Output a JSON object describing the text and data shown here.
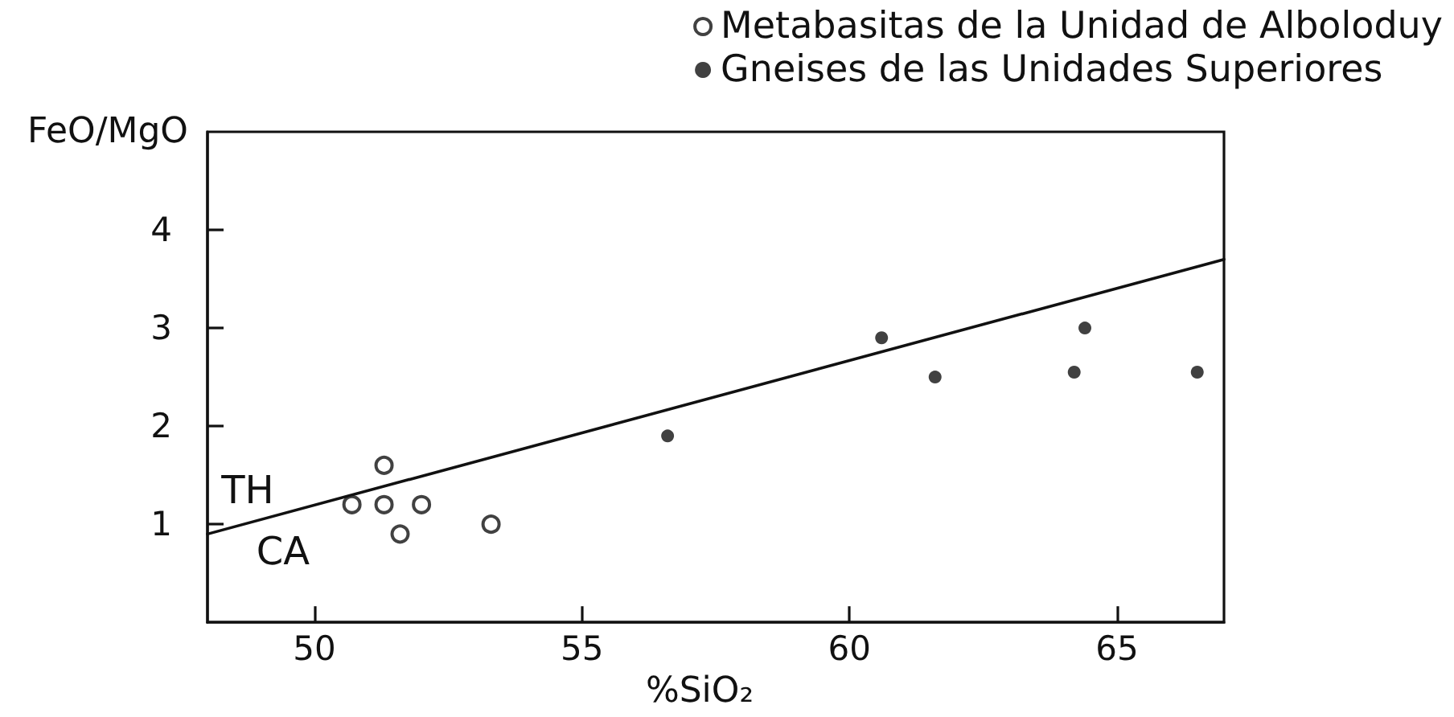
{
  "chart_data": {
    "type": "scatter",
    "xlabel": "%SiO₂",
    "ylabel": "FeO/MgO",
    "xlim": [
      48,
      67
    ],
    "ylim": [
      0,
      5
    ],
    "xticks": [
      50,
      55,
      60,
      65
    ],
    "yticks": [
      1,
      2,
      3,
      4
    ],
    "legend": "top right",
    "annotations": [
      "TH",
      "CA"
    ],
    "series": [
      {
        "name": "Metabasitas de la Unidad de Alboloduy",
        "color": "#111111",
        "marker": "open circle",
        "x": [
          50.7,
          51.3,
          51.3,
          52.0,
          51.6,
          53.3
        ],
        "values": [
          1.2,
          1.6,
          1.2,
          1.2,
          0.9,
          1.0
        ]
      },
      {
        "name": "Gneises de las Unidades Superiores",
        "color": "#111111",
        "marker": "circle",
        "x": [
          56.6,
          60.6,
          61.6,
          64.2,
          64.4,
          66.5
        ],
        "values": [
          1.9,
          2.9,
          2.5,
          2.55,
          3.0,
          2.55
        ]
      },
      {
        "type": "line",
        "color": "#111111",
        "marker": "none",
        "line_style": "solid",
        "x": [
          48,
          67
        ],
        "values": [
          0.9,
          3.7
        ]
      }
    ]
  }
}
